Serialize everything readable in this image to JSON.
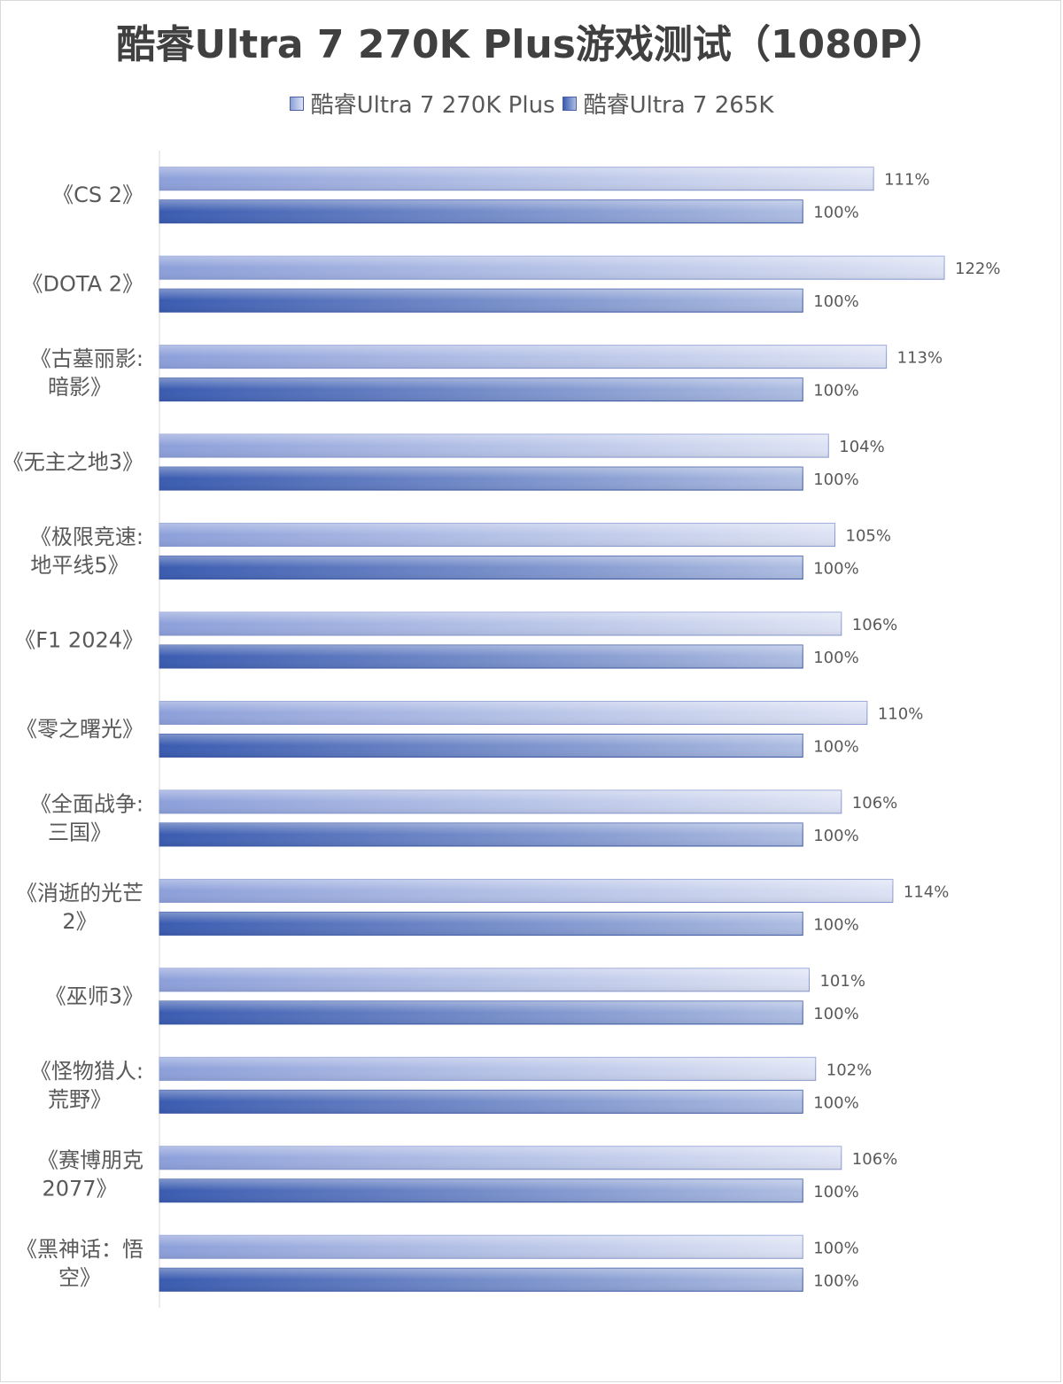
{
  "chart_data": {
    "type": "bar",
    "orientation": "horizontal",
    "title": "酷睿Ultra 7 270K Plus游戏测试（1080P）",
    "legend_position": "top",
    "grid": false,
    "value_suffix": "%",
    "xlim": [
      0,
      122
    ],
    "categories": [
      [
        "《CS 2》"
      ],
      [
        "《DOTA 2》"
      ],
      [
        "《古墓丽影:",
        "暗影》"
      ],
      [
        "《无主之地3》"
      ],
      [
        "《极限竞速:",
        "地平线5》"
      ],
      [
        "《F1 2024》"
      ],
      [
        "《零之曙光》"
      ],
      [
        "《全面战争:",
        "三国》"
      ],
      [
        "《消逝的光芒",
        "2》"
      ],
      [
        "《巫师3》"
      ],
      [
        "《怪物猎人:",
        "荒野》"
      ],
      [
        "《赛博朋克",
        "2077》"
      ],
      [
        "《黑神话：悟",
        "空》"
      ]
    ],
    "series": [
      {
        "name": "酷睿Ultra 7 270K Plus",
        "color_start": "#8c9fd9",
        "color_end": "#dde3f4",
        "values": [
          111,
          122,
          113,
          104,
          105,
          106,
          110,
          106,
          114,
          101,
          102,
          106,
          100
        ]
      },
      {
        "name": "酷睿Ultra 7 265K",
        "color_start": "#3a5bb0",
        "color_end": "#aebde2",
        "values": [
          100,
          100,
          100,
          100,
          100,
          100,
          100,
          100,
          100,
          100,
          100,
          100,
          100
        ]
      }
    ]
  }
}
